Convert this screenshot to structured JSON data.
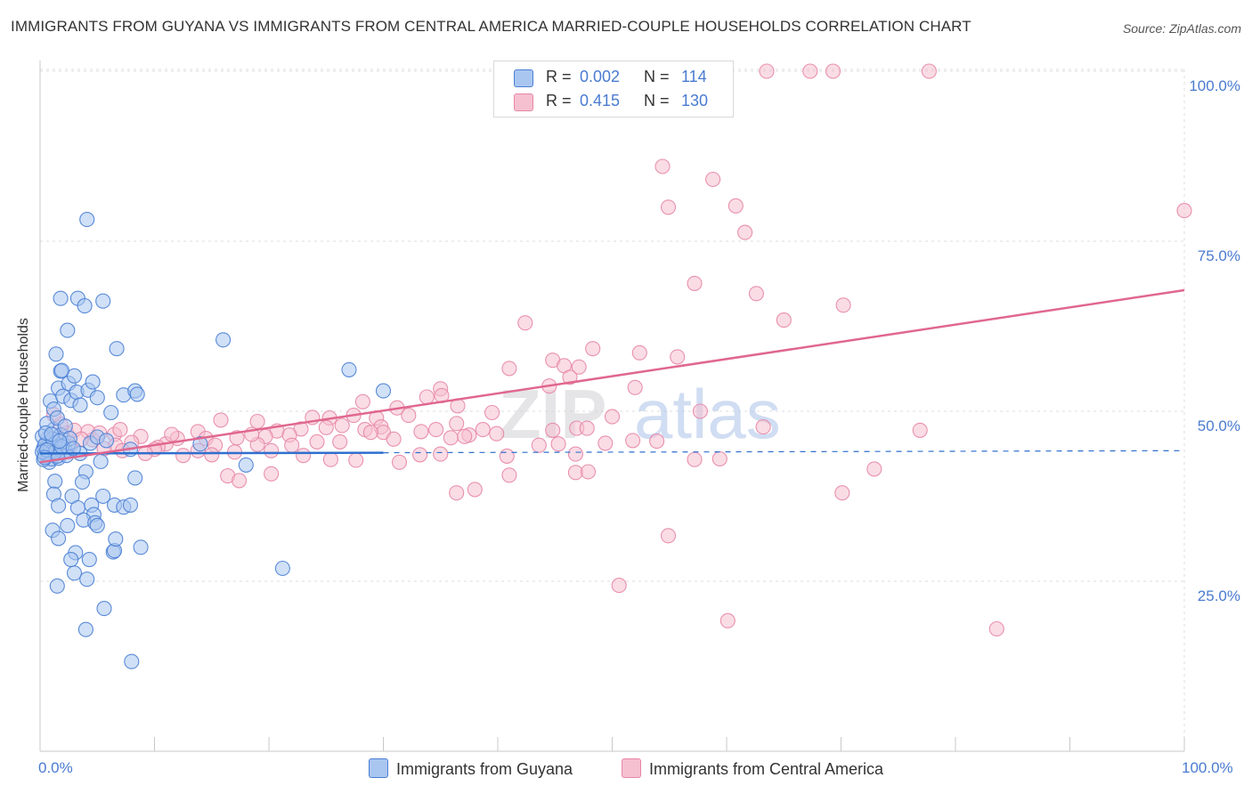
{
  "header": {
    "title": "IMMIGRANTS FROM GUYANA VS IMMIGRANTS FROM CENTRAL AMERICA MARRIED-COUPLE HOUSEHOLDS CORRELATION CHART",
    "source": "Source: ZipAtlas.com"
  },
  "watermark": {
    "zip": "ZIP",
    "atlas": "atlas"
  },
  "colors": {
    "blue_fill": "#a9c6f0",
    "blue_stroke": "#4a7fd4",
    "blue_line": "#2f6fce",
    "pink_fill": "#f5c0d0",
    "pink_stroke": "#e786a6",
    "pink_line": "#e0678f",
    "accent_text": "#4a7bd0",
    "grid": "#dddddd"
  },
  "legend": {
    "series": [
      {
        "r_label": "R =",
        "r_value": "0.002",
        "n_label": "N =",
        "n_value": "114"
      },
      {
        "r_label": "R =",
        "r_value": "0.415",
        "n_label": "N =",
        "n_value": "130"
      }
    ]
  },
  "chart_data": {
    "type": "scatter",
    "title": "IMMIGRANTS FROM GUYANA VS IMMIGRANTS FROM CENTRAL AMERICA MARRIED-COUPLE HOUSEHOLDS CORRELATION CHART",
    "xlabel": "",
    "ylabel": "Married-couple Households",
    "xlim": [
      0,
      100
    ],
    "ylim": [
      0,
      101
    ],
    "x_tick_labels": [
      "0.0%",
      "100.0%"
    ],
    "y_ticks": [
      {
        "value": 25,
        "label": "25.0%"
      },
      {
        "value": 50,
        "label": "50.0%"
      },
      {
        "value": 75,
        "label": "75.0%"
      },
      {
        "value": 100,
        "label": "100.0%"
      }
    ],
    "grid": true,
    "legend_position": "top-center",
    "series": [
      {
        "name": "Immigrants from Guyana",
        "color": "blue",
        "r": 0.002,
        "n": 114,
        "trend": {
          "x": [
            0,
            30
          ],
          "y": [
            43.8,
            43.9
          ],
          "dashed_to_x": 100,
          "dashed_y": 44.2
        },
        "points": [
          [
            0.3,
            44.5
          ],
          [
            0.4,
            43.8
          ],
          [
            0.5,
            45.2
          ],
          [
            0.5,
            44.0
          ],
          [
            0.6,
            43.3
          ],
          [
            0.7,
            46.1
          ],
          [
            0.8,
            44.7
          ],
          [
            0.8,
            42.5
          ],
          [
            1.0,
            45.5
          ],
          [
            1.0,
            43.0
          ],
          [
            1.1,
            44.2
          ],
          [
            1.2,
            47.3
          ],
          [
            1.3,
            43.7
          ],
          [
            1.4,
            44.9
          ],
          [
            1.5,
            45.8
          ],
          [
            1.6,
            43.1
          ],
          [
            1.7,
            44.4
          ],
          [
            1.8,
            46.5
          ],
          [
            2.0,
            43.9
          ],
          [
            2.1,
            45.0
          ],
          [
            2.2,
            44.1
          ],
          [
            2.3,
            43.5
          ],
          [
            2.5,
            45.3
          ],
          [
            0.6,
            48.2
          ],
          [
            0.9,
            51.5
          ],
          [
            1.2,
            50.3
          ],
          [
            1.5,
            49.0
          ],
          [
            1.6,
            53.4
          ],
          [
            1.8,
            55.9
          ],
          [
            2.0,
            52.2
          ],
          [
            2.2,
            47.8
          ],
          [
            2.5,
            54.1
          ],
          [
            2.7,
            51.6
          ],
          [
            3.0,
            55.2
          ],
          [
            3.2,
            52.8
          ],
          [
            3.5,
            50.9
          ],
          [
            4.2,
            53.1
          ],
          [
            4.6,
            54.3
          ],
          [
            5.0,
            52.0
          ],
          [
            6.2,
            49.8
          ],
          [
            7.3,
            52.4
          ],
          [
            8.3,
            53.0
          ],
          [
            8.5,
            52.5
          ],
          [
            1.4,
            58.4
          ],
          [
            1.9,
            56.0
          ],
          [
            2.4,
            61.9
          ],
          [
            1.8,
            66.6
          ],
          [
            3.3,
            66.6
          ],
          [
            3.9,
            65.5
          ],
          [
            5.5,
            66.2
          ],
          [
            6.7,
            59.2
          ],
          [
            16.0,
            60.5
          ],
          [
            27.0,
            56.1
          ],
          [
            30.0,
            53.0
          ],
          [
            4.1,
            78.2
          ],
          [
            3.5,
            43.8
          ],
          [
            4.4,
            45.3
          ],
          [
            5.0,
            46.2
          ],
          [
            5.8,
            45.7
          ],
          [
            5.3,
            42.6
          ],
          [
            7.9,
            44.4
          ],
          [
            14.0,
            45.2
          ],
          [
            18.0,
            42.1
          ],
          [
            4.0,
            41.1
          ],
          [
            3.7,
            39.6
          ],
          [
            1.3,
            39.7
          ],
          [
            1.2,
            37.8
          ],
          [
            2.8,
            37.5
          ],
          [
            5.5,
            37.5
          ],
          [
            6.5,
            36.2
          ],
          [
            7.3,
            35.9
          ],
          [
            7.9,
            36.2
          ],
          [
            8.3,
            40.2
          ],
          [
            1.6,
            36.1
          ],
          [
            3.3,
            35.8
          ],
          [
            4.5,
            36.2
          ],
          [
            4.7,
            34.8
          ],
          [
            3.8,
            34.0
          ],
          [
            4.8,
            33.6
          ],
          [
            5.0,
            33.2
          ],
          [
            2.4,
            33.2
          ],
          [
            1.1,
            32.5
          ],
          [
            1.6,
            31.3
          ],
          [
            3.1,
            29.2
          ],
          [
            6.4,
            29.3
          ],
          [
            6.5,
            29.5
          ],
          [
            2.7,
            28.2
          ],
          [
            4.3,
            28.2
          ],
          [
            6.6,
            31.2
          ],
          [
            8.8,
            30.0
          ],
          [
            21.2,
            26.9
          ],
          [
            3.0,
            26.2
          ],
          [
            4.1,
            25.3
          ],
          [
            1.5,
            24.3
          ],
          [
            5.6,
            21.0
          ],
          [
            4.0,
            17.9
          ],
          [
            8.0,
            13.2
          ],
          [
            0.2,
            46.3
          ],
          [
            0.4,
            45.0
          ],
          [
            0.3,
            42.9
          ],
          [
            0.7,
            43.6
          ],
          [
            0.9,
            44.6
          ],
          [
            1.1,
            45.9
          ],
          [
            1.3,
            44.0
          ],
          [
            1.5,
            43.4
          ],
          [
            0.2,
            44.0
          ],
          [
            0.5,
            46.8
          ],
          [
            2.6,
            46.0
          ],
          [
            1.9,
            44.8
          ],
          [
            0.6,
            44.3
          ],
          [
            1.0,
            46.6
          ],
          [
            1.7,
            45.6
          ],
          [
            2.9,
            44.5
          ],
          [
            0.4,
            43.2
          ]
        ]
      },
      {
        "name": "Immigrants from Central America",
        "color": "pink",
        "r": 0.415,
        "n": 130,
        "trend": {
          "x": [
            0,
            100
          ],
          "y": [
            42.5,
            67.8
          ]
        },
        "points": [
          [
            63.5,
            100
          ],
          [
            67.3,
            100
          ],
          [
            69.3,
            100
          ],
          [
            77.7,
            100
          ],
          [
            54.4,
            86.0
          ],
          [
            58.8,
            84.1
          ],
          [
            54.9,
            80.0
          ],
          [
            60.8,
            80.2
          ],
          [
            61.6,
            76.3
          ],
          [
            100,
            79.5
          ],
          [
            57.2,
            68.8
          ],
          [
            62.6,
            67.3
          ],
          [
            70.2,
            65.6
          ],
          [
            65.0,
            63.4
          ],
          [
            42.4,
            63.0
          ],
          [
            48.3,
            59.2
          ],
          [
            52.4,
            58.6
          ],
          [
            55.7,
            58.0
          ],
          [
            44.8,
            57.5
          ],
          [
            45.8,
            56.7
          ],
          [
            41.0,
            56.3
          ],
          [
            47.1,
            56.5
          ],
          [
            46.3,
            55.0
          ],
          [
            35.0,
            53.3
          ],
          [
            44.5,
            53.7
          ],
          [
            52.0,
            53.5
          ],
          [
            35.1,
            52.3
          ],
          [
            28.2,
            51.4
          ],
          [
            33.8,
            52.1
          ],
          [
            31.2,
            50.5
          ],
          [
            36.5,
            50.8
          ],
          [
            39.5,
            49.8
          ],
          [
            57.7,
            50.0
          ],
          [
            23.8,
            49.1
          ],
          [
            25.3,
            49.0
          ],
          [
            27.4,
            49.4
          ],
          [
            29.4,
            49.0
          ],
          [
            32.2,
            49.4
          ],
          [
            50.0,
            49.2
          ],
          [
            15.8,
            48.7
          ],
          [
            19.0,
            48.5
          ],
          [
            26.4,
            47.9
          ],
          [
            29.8,
            47.7
          ],
          [
            34.6,
            47.3
          ],
          [
            36.4,
            48.2
          ],
          [
            44.8,
            47.2
          ],
          [
            37.5,
            46.5
          ],
          [
            38.7,
            47.3
          ],
          [
            46.9,
            47.5
          ],
          [
            47.8,
            47.5
          ],
          [
            63.2,
            47.7
          ],
          [
            76.9,
            47.2
          ],
          [
            13.8,
            47.0
          ],
          [
            20.7,
            47.1
          ],
          [
            22.8,
            47.4
          ],
          [
            25.0,
            47.6
          ],
          [
            28.4,
            47.3
          ],
          [
            30.0,
            46.9
          ],
          [
            33.3,
            47.0
          ],
          [
            35.9,
            46.1
          ],
          [
            37.1,
            46.3
          ],
          [
            39.9,
            46.7
          ],
          [
            6.5,
            46.6
          ],
          [
            8.8,
            46.3
          ],
          [
            12.0,
            46.0
          ],
          [
            14.5,
            46.0
          ],
          [
            17.2,
            46.1
          ],
          [
            19.7,
            46.3
          ],
          [
            21.8,
            46.5
          ],
          [
            24.2,
            45.5
          ],
          [
            26.2,
            45.5
          ],
          [
            30.9,
            45.9
          ],
          [
            8.0,
            45.4
          ],
          [
            11.0,
            45.2
          ],
          [
            15.3,
            45.0
          ],
          [
            19.0,
            45.1
          ],
          [
            22.0,
            45.0
          ],
          [
            43.6,
            45.0
          ],
          [
            45.3,
            45.2
          ],
          [
            49.4,
            45.3
          ],
          [
            51.8,
            45.7
          ],
          [
            53.9,
            45.6
          ],
          [
            4.6,
            45.8
          ],
          [
            6.6,
            45.0
          ],
          [
            10.3,
            44.7
          ],
          [
            13.8,
            44.2
          ],
          [
            17.0,
            44.0
          ],
          [
            20.2,
            44.2
          ],
          [
            23.0,
            43.5
          ],
          [
            25.4,
            42.9
          ],
          [
            27.6,
            42.8
          ],
          [
            33.2,
            43.6
          ],
          [
            35.0,
            43.7
          ],
          [
            46.8,
            43.7
          ],
          [
            57.2,
            42.9
          ],
          [
            59.4,
            43.0
          ],
          [
            5.6,
            44.5
          ],
          [
            7.2,
            44.2
          ],
          [
            10.0,
            44.4
          ],
          [
            12.5,
            43.5
          ],
          [
            31.4,
            42.5
          ],
          [
            46.8,
            41.0
          ],
          [
            41.0,
            40.6
          ],
          [
            47.9,
            41.1
          ],
          [
            72.9,
            41.5
          ],
          [
            16.4,
            40.5
          ],
          [
            17.4,
            39.8
          ],
          [
            20.2,
            40.8
          ],
          [
            36.4,
            38.0
          ],
          [
            38.0,
            38.5
          ],
          [
            70.1,
            38.0
          ],
          [
            54.9,
            31.7
          ],
          [
            50.6,
            24.4
          ],
          [
            60.1,
            19.2
          ],
          [
            83.6,
            18.0
          ],
          [
            2.3,
            46.8
          ],
          [
            3.0,
            47.2
          ],
          [
            1.8,
            48.1
          ],
          [
            4.2,
            47.0
          ],
          [
            3.6,
            45.9
          ],
          [
            2.6,
            44.8
          ],
          [
            9.2,
            43.8
          ],
          [
            5.2,
            46.8
          ],
          [
            7.0,
            47.3
          ],
          [
            11.5,
            46.6
          ],
          [
            15.0,
            43.6
          ],
          [
            18.5,
            46.6
          ],
          [
            28.9,
            46.9
          ],
          [
            40.8,
            43.4
          ],
          [
            1.2,
            49.5
          ]
        ]
      }
    ]
  },
  "bottom_legend": {
    "series_1_label": "Immigrants from Guyana",
    "series_2_label": "Immigrants from Central America"
  }
}
